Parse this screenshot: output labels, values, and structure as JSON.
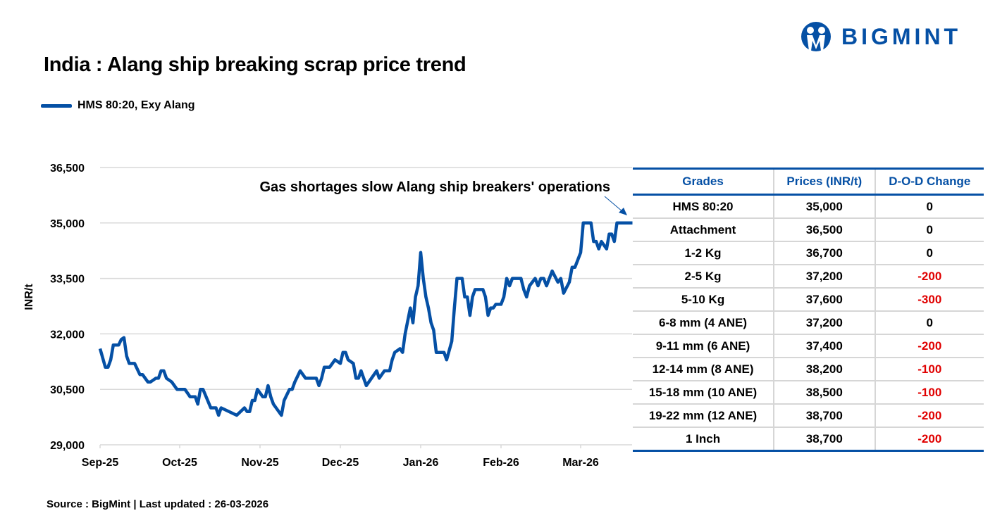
{
  "title": "India : Alang ship breaking scrap price trend",
  "logo": {
    "text": "BIGMINT",
    "color": "#0550a5"
  },
  "source": "Source : BigMint | Last updated : 26-03-2026",
  "table": {
    "headers": [
      "Grades",
      "Prices (INR/t)",
      "D-O-D Change"
    ],
    "rows": [
      [
        "HMS 80:20",
        "35,000",
        "0"
      ],
      [
        "Attachment",
        "36,500",
        "0"
      ],
      [
        "1-2 Kg",
        "36,700",
        "0"
      ],
      [
        "2-5 Kg",
        "37,200",
        "-200"
      ],
      [
        "5-10 Kg",
        "37,600",
        "-300"
      ],
      [
        "6-8 mm (4 ANE)",
        "37,200",
        "0"
      ],
      [
        "9-11 mm (6 ANE)",
        "37,400",
        "-200"
      ],
      [
        "12-14 mm (8 ANE)",
        "38,200",
        "-100"
      ],
      [
        "15-18 mm (10 ANE)",
        "38,500",
        "-100"
      ],
      [
        "19-22 mm (12 ANE)",
        "38,700",
        "-200"
      ],
      [
        "1 Inch",
        "38,700",
        "-200"
      ]
    ],
    "negative_color": "#e00000",
    "header_color": "#0550a5"
  },
  "chart_data": {
    "type": "line",
    "title": "India : Alang ship breaking scrap price trend",
    "xlabel": "",
    "ylabel": "INR/t",
    "ylim": [
      29000,
      36500
    ],
    "yticks": [
      29000,
      30500,
      32000,
      33500,
      35000,
      36500
    ],
    "ytick_labels": [
      "29,000",
      "30,500",
      "32,000",
      "33,500",
      "35,000",
      "36,500"
    ],
    "xticks": [
      "2025-09-01",
      "2025-10-01",
      "2025-11-01",
      "2025-12-01",
      "2026-01-01",
      "2026-02-01",
      "2026-03-01"
    ],
    "xtick_labels": [
      "Sep-25",
      "Oct-25",
      "Nov-25",
      "Dec-25",
      "Jan-26",
      "Feb-26",
      "Mar-26"
    ],
    "xlim": [
      "2025-09-01",
      "2026-03-21"
    ],
    "grid": "horizontal",
    "legend": "top-left",
    "annotation": "Gas shortages slow Alang ship breakers' operations",
    "series": [
      {
        "name": "HMS 80:20, Exy Alang",
        "color": "#0550a5",
        "points": [
          [
            "2025-09-01",
            31600
          ],
          [
            "2025-09-03",
            31100
          ],
          [
            "2025-09-04",
            31100
          ],
          [
            "2025-09-05",
            31300
          ],
          [
            "2025-09-06",
            31700
          ],
          [
            "2025-09-08",
            31700
          ],
          [
            "2025-09-09",
            31850
          ],
          [
            "2025-09-10",
            31900
          ],
          [
            "2025-09-11",
            31400
          ],
          [
            "2025-09-12",
            31200
          ],
          [
            "2025-09-14",
            31200
          ],
          [
            "2025-09-16",
            30900
          ],
          [
            "2025-09-17",
            30900
          ],
          [
            "2025-09-19",
            30700
          ],
          [
            "2025-09-20",
            30700
          ],
          [
            "2025-09-22",
            30800
          ],
          [
            "2025-09-23",
            30800
          ],
          [
            "2025-09-24",
            31000
          ],
          [
            "2025-09-25",
            31000
          ],
          [
            "2025-09-26",
            30800
          ],
          [
            "2025-09-28",
            30700
          ],
          [
            "2025-09-30",
            30500
          ],
          [
            "2025-10-03",
            30500
          ],
          [
            "2025-10-05",
            30300
          ],
          [
            "2025-10-07",
            30300
          ],
          [
            "2025-10-08",
            30100
          ],
          [
            "2025-10-09",
            30500
          ],
          [
            "2025-10-10",
            30500
          ],
          [
            "2025-10-13",
            30000
          ],
          [
            "2025-10-15",
            30000
          ],
          [
            "2025-10-16",
            29800
          ],
          [
            "2025-10-17",
            30000
          ],
          [
            "2025-10-23",
            29800
          ],
          [
            "2025-10-26",
            30000
          ],
          [
            "2025-10-27",
            29900
          ],
          [
            "2025-10-28",
            29900
          ],
          [
            "2025-10-29",
            30200
          ],
          [
            "2025-10-30",
            30200
          ],
          [
            "2025-10-31",
            30500
          ],
          [
            "2025-11-02",
            30300
          ],
          [
            "2025-11-03",
            30300
          ],
          [
            "2025-11-04",
            30600
          ],
          [
            "2025-11-05",
            30300
          ],
          [
            "2025-11-06",
            30100
          ],
          [
            "2025-11-07",
            30000
          ],
          [
            "2025-11-09",
            29800
          ],
          [
            "2025-11-10",
            30200
          ],
          [
            "2025-11-12",
            30500
          ],
          [
            "2025-11-13",
            30500
          ],
          [
            "2025-11-14",
            30700
          ],
          [
            "2025-11-16",
            31000
          ],
          [
            "2025-11-18",
            30800
          ],
          [
            "2025-11-22",
            30800
          ],
          [
            "2025-11-23",
            30600
          ],
          [
            "2025-11-24",
            30800
          ],
          [
            "2025-11-25",
            31100
          ],
          [
            "2025-11-27",
            31100
          ],
          [
            "2025-11-29",
            31300
          ],
          [
            "2025-12-01",
            31200
          ],
          [
            "2025-12-02",
            31500
          ],
          [
            "2025-12-03",
            31500
          ],
          [
            "2025-12-04",
            31300
          ],
          [
            "2025-12-06",
            31200
          ],
          [
            "2025-12-07",
            30800
          ],
          [
            "2025-12-08",
            30800
          ],
          [
            "2025-12-09",
            31000
          ],
          [
            "2025-12-11",
            30600
          ],
          [
            "2025-12-15",
            31000
          ],
          [
            "2025-12-16",
            30800
          ],
          [
            "2025-12-18",
            31000
          ],
          [
            "2025-12-20",
            31000
          ],
          [
            "2025-12-21",
            31300
          ],
          [
            "2025-12-22",
            31500
          ],
          [
            "2025-12-24",
            31600
          ],
          [
            "2025-12-25",
            31500
          ],
          [
            "2025-12-26",
            32000
          ],
          [
            "2025-12-28",
            32700
          ],
          [
            "2025-12-29",
            32300
          ],
          [
            "2025-12-30",
            33000
          ],
          [
            "2025-12-31",
            33300
          ],
          [
            "2026-01-01",
            34200
          ],
          [
            "2026-01-02",
            33500
          ],
          [
            "2026-01-03",
            33000
          ],
          [
            "2026-01-04",
            32700
          ],
          [
            "2026-01-05",
            32300
          ],
          [
            "2026-01-06",
            32100
          ],
          [
            "2026-01-07",
            31500
          ],
          [
            "2026-01-10",
            31500
          ],
          [
            "2026-01-11",
            31300
          ],
          [
            "2026-01-13",
            31800
          ],
          [
            "2026-01-14",
            32700
          ],
          [
            "2026-01-15",
            33500
          ],
          [
            "2026-01-17",
            33500
          ],
          [
            "2026-01-18",
            33000
          ],
          [
            "2026-01-19",
            33000
          ],
          [
            "2026-01-20",
            32500
          ],
          [
            "2026-01-21",
            33000
          ],
          [
            "2026-01-22",
            33200
          ],
          [
            "2026-01-25",
            33200
          ],
          [
            "2026-01-26",
            33000
          ],
          [
            "2026-01-27",
            32500
          ],
          [
            "2026-01-28",
            32700
          ],
          [
            "2026-01-29",
            32700
          ],
          [
            "2026-01-30",
            32800
          ],
          [
            "2026-02-01",
            32800
          ],
          [
            "2026-02-02",
            33000
          ],
          [
            "2026-02-03",
            33500
          ],
          [
            "2026-02-04",
            33300
          ],
          [
            "2026-02-05",
            33500
          ],
          [
            "2026-02-08",
            33500
          ],
          [
            "2026-02-09",
            33200
          ],
          [
            "2026-02-10",
            33000
          ],
          [
            "2026-02-11",
            33300
          ],
          [
            "2026-02-13",
            33500
          ],
          [
            "2026-02-14",
            33300
          ],
          [
            "2026-02-15",
            33500
          ],
          [
            "2026-02-16",
            33500
          ],
          [
            "2026-02-17",
            33300
          ],
          [
            "2026-02-18",
            33500
          ],
          [
            "2026-02-19",
            33700
          ],
          [
            "2026-02-21",
            33400
          ],
          [
            "2026-02-22",
            33500
          ],
          [
            "2026-02-23",
            33100
          ],
          [
            "2026-02-25",
            33400
          ],
          [
            "2026-02-26",
            33800
          ],
          [
            "2026-02-27",
            33800
          ],
          [
            "2026-03-01",
            34200
          ],
          [
            "2026-03-02",
            35000
          ],
          [
            "2026-03-05",
            35000
          ],
          [
            "2026-03-06",
            34500
          ],
          [
            "2026-03-07",
            34500
          ],
          [
            "2026-03-08",
            34300
          ],
          [
            "2026-03-09",
            34500
          ],
          [
            "2026-03-11",
            34300
          ],
          [
            "2026-03-12",
            34700
          ],
          [
            "2026-03-13",
            34700
          ],
          [
            "2026-03-14",
            34500
          ],
          [
            "2026-03-15",
            35000
          ],
          [
            "2026-03-21",
            35000
          ]
        ]
      }
    ]
  }
}
